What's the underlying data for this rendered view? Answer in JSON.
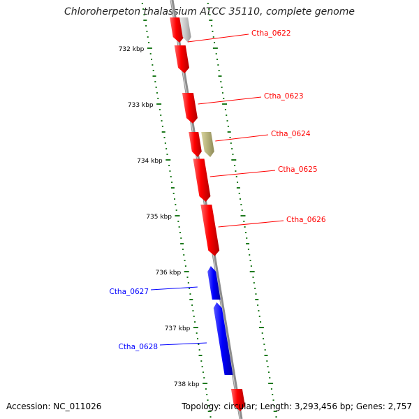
{
  "title": "Chloroherpeton thalassium ATCC 35110, complete genome",
  "accession_label": "Accession: NC_011026",
  "summary_label": "Topology: circular; Length: 3,293,456 bp; Genes: 2,757",
  "colors": {
    "forward_gene": "#ff0000",
    "reverse_gene": "#0000ff",
    "other_feature": "#b5b17a",
    "partial_feature": "#c8c8c8",
    "backbone": "#8c8c8c",
    "ruler": "#1e7a1e"
  },
  "ruler": {
    "unit": "kbp",
    "ticks": [
      {
        "label": "732 kbp",
        "kbp": 732
      },
      {
        "label": "733 kbp",
        "kbp": 733
      },
      {
        "label": "734 kbp",
        "kbp": 734
      },
      {
        "label": "735 kbp",
        "kbp": 735
      },
      {
        "label": "736 kbp",
        "kbp": 736
      },
      {
        "label": "737 kbp",
        "kbp": 737
      },
      {
        "label": "738 kbp",
        "kbp": 738
      }
    ]
  },
  "genes": [
    {
      "id": "ctha_0621",
      "label": "",
      "strand": "forward",
      "start_kbp": 731.45,
      "end_kbp": 731.9,
      "type": "gene"
    },
    {
      "id": "ctha_0621b",
      "label": "",
      "strand": "forward",
      "start_kbp": 731.45,
      "end_kbp": 731.9,
      "type": "partial"
    },
    {
      "id": "ctha_0622",
      "label": "Ctha_0622",
      "strand": "forward",
      "start_kbp": 731.95,
      "end_kbp": 732.45,
      "type": "gene"
    },
    {
      "id": "ctha_0623",
      "label": "Ctha_0623",
      "strand": "forward",
      "start_kbp": 732.8,
      "end_kbp": 733.35,
      "type": "gene"
    },
    {
      "id": "ctha_0624",
      "label": "Ctha_0624",
      "strand": "forward",
      "start_kbp": 733.5,
      "end_kbp": 733.95,
      "type": "other"
    },
    {
      "id": "ctha_0624g",
      "label": "",
      "strand": "forward",
      "start_kbp": 733.5,
      "end_kbp": 733.95,
      "type": "gene"
    },
    {
      "id": "ctha_0625",
      "label": "Ctha_0625",
      "strand": "forward",
      "start_kbp": 733.98,
      "end_kbp": 734.75,
      "type": "gene"
    },
    {
      "id": "ctha_0626",
      "label": "Ctha_0626",
      "strand": "forward",
      "start_kbp": 734.8,
      "end_kbp": 735.72,
      "type": "gene"
    },
    {
      "id": "ctha_0627",
      "label": "Ctha_0627",
      "strand": "reverse",
      "start_kbp": 735.9,
      "end_kbp": 736.5,
      "type": "gene"
    },
    {
      "id": "ctha_0628",
      "label": "Ctha_0628",
      "strand": "reverse",
      "start_kbp": 736.55,
      "end_kbp": 737.85,
      "type": "gene"
    },
    {
      "id": "ctha_0629",
      "label": "",
      "strand": "forward",
      "start_kbp": 738.1,
      "end_kbp": 738.5,
      "type": "gene"
    }
  ]
}
